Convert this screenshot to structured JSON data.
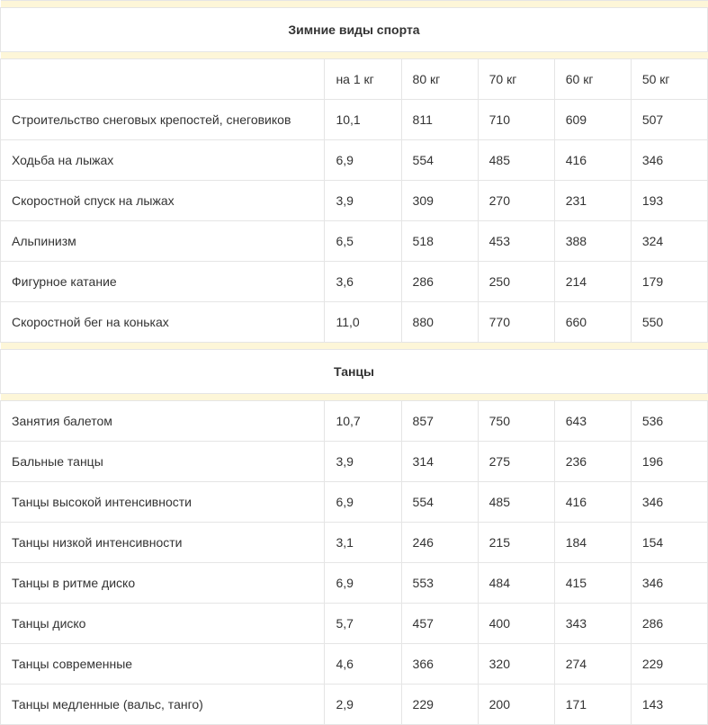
{
  "colors": {
    "border": "#e5e5e5",
    "spacer_bg": "#fdf6d8",
    "text": "#333333",
    "row_bg": "#ffffff"
  },
  "typography": {
    "font_family": "Arial, Helvetica, sans-serif",
    "font_size_pt": 10.5,
    "title_weight": 700
  },
  "columns_header": {
    "activity": "",
    "per_kg": "на 1 кг",
    "c80": "80 кг",
    "c70": "70 кг",
    "c60": "60 кг",
    "c50": "50 кг"
  },
  "sections": [
    {
      "title": "Зимние виды спорта",
      "show_header": true,
      "rows": [
        {
          "activity": "Строительство снеговых крепостей, снеговиков",
          "per_kg": "10,1",
          "c80": "811",
          "c70": "710",
          "c60": "609",
          "c50": "507"
        },
        {
          "activity": "Ходьба на лыжах",
          "per_kg": "6,9",
          "c80": "554",
          "c70": "485",
          "c60": "416",
          "c50": "346"
        },
        {
          "activity": "Скоростной спуск на лыжах",
          "per_kg": "3,9",
          "c80": "309",
          "c70": "270",
          "c60": "231",
          "c50": "193"
        },
        {
          "activity": "Альпинизм",
          "per_kg": "6,5",
          "c80": "518",
          "c70": "453",
          "c60": "388",
          "c50": "324"
        },
        {
          "activity": "Фигурное катание",
          "per_kg": "3,6",
          "c80": "286",
          "c70": "250",
          "c60": "214",
          "c50": "179"
        },
        {
          "activity": "Скоростной бег на коньках",
          "per_kg": "11,0",
          "c80": "880",
          "c70": "770",
          "c60": "660",
          "c50": "550"
        }
      ]
    },
    {
      "title": "Танцы",
      "show_header": false,
      "rows": [
        {
          "activity": "Занятия балетом",
          "per_kg": "10,7",
          "c80": "857",
          "c70": "750",
          "c60": "643",
          "c50": "536"
        },
        {
          "activity": "Бальные танцы",
          "per_kg": "3,9",
          "c80": "314",
          "c70": "275",
          "c60": "236",
          "c50": "196"
        },
        {
          "activity": "Танцы высокой интенсивности",
          "per_kg": "6,9",
          "c80": "554",
          "c70": "485",
          "c60": "416",
          "c50": "346"
        },
        {
          "activity": "Танцы низкой интенсивности",
          "per_kg": "3,1",
          "c80": "246",
          "c70": "215",
          "c60": "184",
          "c50": "154"
        },
        {
          "activity": "Танцы в ритме диско",
          "per_kg": "6,9",
          "c80": "553",
          "c70": "484",
          "c60": "415",
          "c50": "346"
        },
        {
          "activity": "Танцы диско",
          "per_kg": "5,7",
          "c80": "457",
          "c70": "400",
          "c60": "343",
          "c50": "286"
        },
        {
          "activity": "Танцы современные",
          "per_kg": "4,6",
          "c80": "366",
          "c70": "320",
          "c60": "274",
          "c50": "229"
        },
        {
          "activity": "Танцы медленные (вальс, танго)",
          "per_kg": "2,9",
          "c80": "229",
          "c70": "200",
          "c60": "171",
          "c50": "143"
        }
      ]
    }
  ]
}
